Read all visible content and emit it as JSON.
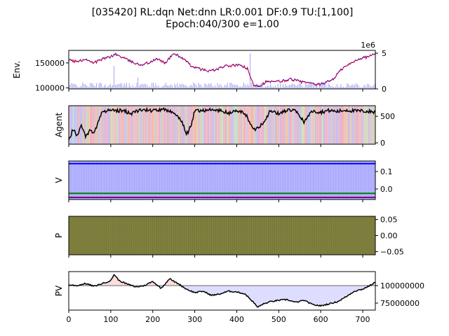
{
  "title": {
    "line1": "[035420] RL:dqn Net:dnn LR:0.001 DF:0.9 TU:[1,100]",
    "line2": "Epoch:040/300 e=1.00"
  },
  "chart_data": [
    {
      "type": "line",
      "panel": "env",
      "ylabel": "Env.",
      "xlim": [
        0,
        730
      ],
      "ylim": [
        98000,
        175000
      ],
      "y_ticks": [
        100000,
        150000
      ],
      "y_tick_labels": [
        "100000",
        "150000"
      ],
      "right_axis": {
        "ylim": [
          0,
          5.4
        ],
        "ticks": [
          0,
          5
        ],
        "tick_labels": [
          "0",
          "5"
        ],
        "offset_label": "1e6",
        "series": "volume (bars)"
      },
      "series": [
        {
          "color": "#0000ff",
          "x": [
            0,
            20,
            40,
            60,
            80,
            100,
            110,
            130,
            150,
            170,
            190,
            210,
            230,
            250,
            270,
            290,
            310,
            330,
            350,
            370,
            390,
            410,
            425,
            440,
            455,
            470,
            490,
            510,
            530,
            550,
            570,
            590,
            610,
            630,
            650,
            670,
            690,
            710,
            730
          ],
          "y": [
            156000,
            152000,
            158000,
            150000,
            158000,
            162000,
            168000,
            160000,
            152000,
            146000,
            150000,
            158000,
            150000,
            169000,
            160000,
            145000,
            138000,
            134000,
            136000,
            143000,
            145000,
            145000,
            138000,
            106000,
            104000,
            112000,
            112000,
            114000,
            118000,
            113000,
            110000,
            106000,
            110000,
            118000,
            138000,
            148000,
            158000,
            162000,
            168000
          ]
        }
      ]
    },
    {
      "type": "line",
      "panel": "agent",
      "ylabel": "Agent",
      "xlim": [
        0,
        730
      ],
      "ylim": [
        -25,
        700
      ],
      "y_ticks": [
        0,
        500
      ],
      "y_tick_labels": [
        "0",
        "500"
      ],
      "series": [
        {
          "color": "#000000",
          "x": [
            0,
            10,
            20,
            30,
            40,
            50,
            60,
            70,
            80,
            90,
            100,
            130,
            150,
            170,
            200,
            230,
            250,
            270,
            280,
            290,
            300,
            310,
            330,
            360,
            380,
            400,
            420,
            440,
            460,
            480,
            500,
            520,
            540,
            560,
            580,
            600,
            620,
            640,
            660,
            680,
            700,
            730
          ],
          "y": [
            50,
            250,
            150,
            350,
            100,
            250,
            200,
            380,
            600,
            590,
            620,
            600,
            560,
            620,
            610,
            620,
            580,
            400,
            150,
            300,
            600,
            610,
            620,
            610,
            560,
            600,
            560,
            240,
            350,
            600,
            550,
            620,
            600,
            400,
            600,
            580,
            610,
            590,
            620,
            600,
            600,
            580
          ]
        }
      ]
    },
    {
      "type": "line",
      "panel": "value",
      "ylabel": "V",
      "xlim": [
        0,
        730
      ],
      "ylim": [
        -0.06,
        0.16
      ],
      "y_ticks": [
        0.1,
        0.0
      ],
      "y_tick_labels": [
        "0.1",
        "0.0"
      ],
      "series": [
        {
          "name": "",
          "color": "#0000ff",
          "x": [
            0,
            730
          ],
          "y": [
            0.145,
            0.145
          ]
        },
        {
          "name": "",
          "color": "#008000",
          "x": [
            0,
            730
          ],
          "y": [
            -0.025,
            -0.025
          ]
        },
        {
          "name": "",
          "color": "#800080",
          "x": [
            0,
            730
          ],
          "y": [
            -0.048,
            -0.048
          ]
        }
      ]
    },
    {
      "type": "area",
      "panel": "policy",
      "ylabel": "P",
      "xlim": [
        0,
        730
      ],
      "ylim": [
        -0.06,
        0.06
      ],
      "y_ticks": [
        0.05,
        0.0,
        -0.05
      ],
      "y_tick_labels": [
        "0.05",
        "0.00",
        "−0.05"
      ],
      "series": [
        {
          "color": "#808040",
          "x": [
            0,
            730
          ],
          "y": [
            0.0,
            0.0
          ]
        }
      ]
    },
    {
      "type": "line",
      "panel": "portfolio_value",
      "ylabel": "PV",
      "xlabel": "",
      "xlim": [
        0,
        730
      ],
      "ylim": [
        65000000,
        120000000
      ],
      "y_ticks": [
        100000000,
        75000000
      ],
      "y_tick_labels": [
        "100000000",
        "75000000"
      ],
      "x_ticks": [
        0,
        100,
        200,
        300,
        400,
        500,
        600,
        700
      ],
      "x_tick_labels": [
        "0",
        "100",
        "200",
        "300",
        "400",
        "500",
        "600",
        "700"
      ],
      "baseline": 100000000,
      "series": [
        {
          "color": "#000000",
          "x": [
            0,
            20,
            40,
            60,
            80,
            100,
            108,
            120,
            140,
            160,
            180,
            200,
            220,
            240,
            250,
            260,
            280,
            300,
            320,
            340,
            360,
            380,
            400,
            420,
            440,
            450,
            460,
            480,
            500,
            520,
            540,
            560,
            580,
            600,
            620,
            640,
            660,
            680,
            700,
            720,
            730
          ],
          "y": [
            101000000,
            100000000,
            103000000,
            99000000,
            103000000,
            107000000,
            116000000,
            107000000,
            102000000,
            98000000,
            100000000,
            106000000,
            96000000,
            110000000,
            106000000,
            103000000,
            95000000,
            90000000,
            92000000,
            86000000,
            88000000,
            92000000,
            91000000,
            88000000,
            76000000,
            69000000,
            73000000,
            77000000,
            79000000,
            80000000,
            76000000,
            79000000,
            73000000,
            71000000,
            74000000,
            77000000,
            84000000,
            92000000,
            95000000,
            101000000,
            105000000
          ]
        }
      ]
    }
  ]
}
